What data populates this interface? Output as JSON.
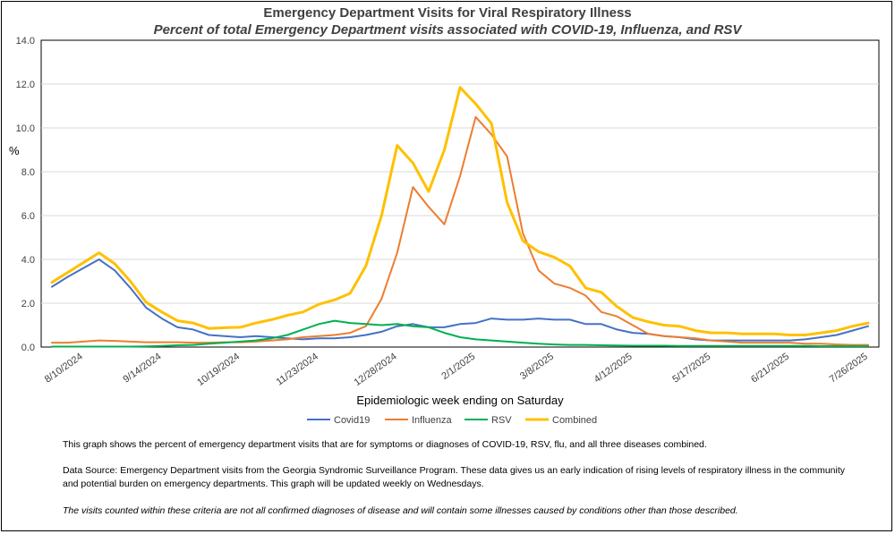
{
  "chart_data": {
    "type": "line",
    "title": "Emergency Department Visits for Viral Respiratory Illness",
    "subtitle": "Percent of total Emergency Department visits associated with COVID-19, Influenza, and RSV",
    "ylabel": "%",
    "xlabel": "Epidemiologic  week ending on Saturday",
    "ylim": [
      0,
      14
    ],
    "yticks": [
      "0.0",
      "2.0",
      "4.0",
      "6.0",
      "8.0",
      "10.0",
      "12.0",
      "14.0"
    ],
    "x_tick_labels": [
      "8/10/2024",
      "9/14/2024",
      "10/19/2024",
      "11/23/2024",
      "12/28/2024",
      "2/1/2025",
      "3/8/2025",
      "4/12/2025",
      "5/17/2025",
      "6/21/2025",
      "7/26/2025"
    ],
    "x_tick_indices": [
      2,
      7,
      12,
      17,
      22,
      27,
      32,
      37,
      42,
      47,
      52
    ],
    "n_weeks": 53,
    "series": [
      {
        "name": "Covid19",
        "color": "#4472C4",
        "values": [
          2.75,
          3.2,
          3.6,
          4.0,
          3.5,
          2.7,
          1.8,
          1.3,
          0.9,
          0.8,
          0.55,
          0.5,
          0.45,
          0.5,
          0.45,
          0.4,
          0.35,
          0.4,
          0.4,
          0.45,
          0.55,
          0.7,
          0.95,
          1.05,
          0.9,
          0.9,
          1.05,
          1.1,
          1.3,
          1.25,
          1.25,
          1.3,
          1.25,
          1.25,
          1.05,
          1.05,
          0.8,
          0.65,
          0.6,
          0.5,
          0.45,
          0.35,
          0.3,
          0.3,
          0.3,
          0.3,
          0.3,
          0.3,
          0.35,
          0.45,
          0.55,
          0.75,
          0.95
        ]
      },
      {
        "name": "Influenza",
        "color": "#ED7D31",
        "values": [
          0.2,
          0.2,
          0.25,
          0.3,
          0.28,
          0.25,
          0.22,
          0.22,
          0.22,
          0.2,
          0.2,
          0.22,
          0.22,
          0.25,
          0.3,
          0.35,
          0.45,
          0.5,
          0.55,
          0.65,
          0.95,
          2.2,
          4.3,
          7.3,
          6.4,
          5.6,
          7.8,
          10.5,
          9.7,
          8.7,
          5.2,
          3.5,
          2.9,
          2.7,
          2.35,
          1.6,
          1.4,
          1.0,
          0.6,
          0.5,
          0.45,
          0.4,
          0.3,
          0.25,
          0.2,
          0.2,
          0.2,
          0.2,
          0.15,
          0.15,
          0.12,
          0.1,
          0.1
        ]
      },
      {
        "name": "RSV",
        "color": "#00B050",
        "values": [
          0.02,
          0.02,
          0.02,
          0.02,
          0.02,
          0.02,
          0.03,
          0.05,
          0.08,
          0.1,
          0.15,
          0.2,
          0.25,
          0.3,
          0.4,
          0.55,
          0.8,
          1.05,
          1.2,
          1.1,
          1.05,
          1.0,
          1.05,
          0.95,
          0.9,
          0.65,
          0.45,
          0.35,
          0.3,
          0.25,
          0.2,
          0.15,
          0.12,
          0.1,
          0.1,
          0.08,
          0.07,
          0.06,
          0.06,
          0.06,
          0.05,
          0.05,
          0.05,
          0.05,
          0.05,
          0.05,
          0.05,
          0.05,
          0.05,
          0.04,
          0.04,
          0.04,
          0.04
        ]
      },
      {
        "name": "Combined",
        "color": "#FFC000",
        "values": [
          2.95,
          3.4,
          3.85,
          4.3,
          3.8,
          3.0,
          2.05,
          1.6,
          1.2,
          1.1,
          0.85,
          0.88,
          0.9,
          1.1,
          1.25,
          1.45,
          1.6,
          1.95,
          2.15,
          2.45,
          3.7,
          6.0,
          9.2,
          8.4,
          7.1,
          9.0,
          11.85,
          11.1,
          10.2,
          6.6,
          4.85,
          4.35,
          4.1,
          3.7,
          2.7,
          2.5,
          1.85,
          1.35,
          1.15,
          1.0,
          0.95,
          0.75,
          0.65,
          0.65,
          0.6,
          0.6,
          0.6,
          0.55,
          0.55,
          0.65,
          0.75,
          0.95,
          1.1
        ]
      }
    ],
    "legend_position": "bottom"
  },
  "notes": {
    "line1": "This graph shows the percent of emergency department visits that are for symptoms or diagnoses of COVID-19, RSV, flu, and all three diseases combined.",
    "line2": "Data Source: Emergency Department visits from the Georgia Syndromic Surveillance Program. These data gives us an early indication of rising levels of respiratory illness in the community and potential burden on emergency departments. This graph will be updated weekly on Wednesdays.",
    "line3": "The visits counted within these criteria are not all confirmed diagnoses of disease and will contain some illnesses caused by conditions other than those described."
  }
}
